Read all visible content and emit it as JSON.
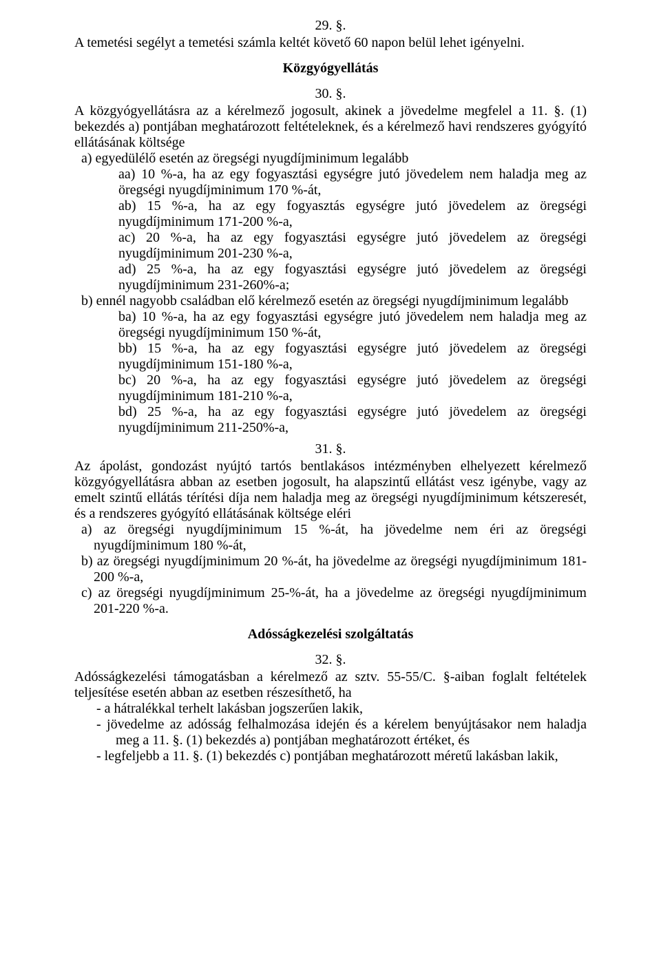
{
  "typography": {
    "font_family": "Times New Roman",
    "base_fontsize_pt": 15,
    "title_fontweight": "bold",
    "text_color": "#000000",
    "background_color": "#ffffff"
  },
  "s29": {
    "number": "29. §.",
    "text": "A temetési segélyt a temetési számla keltét követő 60 napon belül lehet igényelni."
  },
  "kozgyogy": {
    "title": "Közgyógyellátás"
  },
  "s30": {
    "number": "30. §.",
    "intro": "A közgyógyellátásra az a kérelmező jogosult, akinek a jövedelme megfelel a 11. §. (1) bekezdés a) pontjában meghatározott feltételeknek, és a kérelmező havi rendszeres gyógyító ellátásának költsége",
    "a_head": "a)  egyedülélő esetén az öregségi nyugdíjminimum legalább",
    "a_aa": "aa) 10 %-a, ha az egy fogyasztási egységre jutó jövedelem nem haladja meg az öregségi nyugdíjminimum 170 %-át,",
    "a_ab": "ab) 15 %-a, ha az egy fogyasztás egységre jutó jövedelem az öregségi nyugdíjminimum 171-200 %-a,",
    "a_ac": "ac) 20 %-a, ha az egy fogyasztási egységre jutó jövedelem az öregségi nyugdíjminimum 201-230 %-a,",
    "a_ad": "ad) 25 %-a, ha az egy fogyasztási egységre jutó jövedelem az öregségi nyugdíjminimum 231-260%-a;",
    "b_head": "b)  ennél nagyobb családban elő kérelmező esetén az öregségi nyugdíjminimum legalább",
    "b_ba": "ba) 10 %-a, ha az egy fogyasztási egységre jutó jövedelem nem haladja meg az öregségi nyugdíjminimum 150 %-át,",
    "b_bb": "bb) 15 %-a, ha az egy fogyasztási egységre jutó jövedelem az öregségi nyugdíjminimum 151-180 %-a,",
    "b_bc": "bc) 20 %-a, ha az egy fogyasztási egységre jutó jövedelem az öregségi nyugdíjminimum 181-210 %-a,",
    "b_bd": "bd) 25 %-a, ha az egy fogyasztási egységre jutó jövedelem az öregségi nyugdíjminimum 211-250%-a,"
  },
  "s31": {
    "number": "31. §.",
    "intro": "Az ápolást, gondozást nyújtó tartós bentlakásos intézményben elhelyezett kérelmező közgyógyellátásra abban az esetben jogosult, ha alapszintű ellátást vesz igénybe, vagy az emelt szintű ellátás térítési díja nem haladja meg az öregségi nyugdíjminimum kétszeresét, és a rendszeres gyógyító ellátásának költsége eléri",
    "a": "a)  az öregségi nyugdíjminimum 15 %-át, ha jövedelme nem éri az öregségi nyugdíjminimum 180 %-át,",
    "b": "b)  az öregségi nyugdíjminimum 20 %-át, ha jövedelme az öregségi nyugdíjminimum 181-200 %-a,",
    "c": "c)  az öregségi nyugdíjminimum 25-%-át, ha a jövedelme az öregségi nyugdíjminimum 201-220 %-a."
  },
  "adossag": {
    "title": "Adósságkezelési szolgáltatás"
  },
  "s32": {
    "number": "32. §.",
    "intro": "Adósságkezelési támogatásban a kérelmező az sztv. 55-55/C. §-aiban foglalt feltételek teljesítése esetén abban az esetben részesíthető, ha",
    "d1": "-    a hátralékkal terhelt lakásban jogszerűen lakik,",
    "d2": "-    jövedelme az adósság felhalmozása idején és a kérelem benyújtásakor nem haladja meg a 11. §. (1) bekezdés a) pontjában meghatározott értéket, és",
    "d3": "-    legfeljebb a 11. §. (1) bekezdés c) pontjában meghatározott méretű lakásban lakik,"
  }
}
